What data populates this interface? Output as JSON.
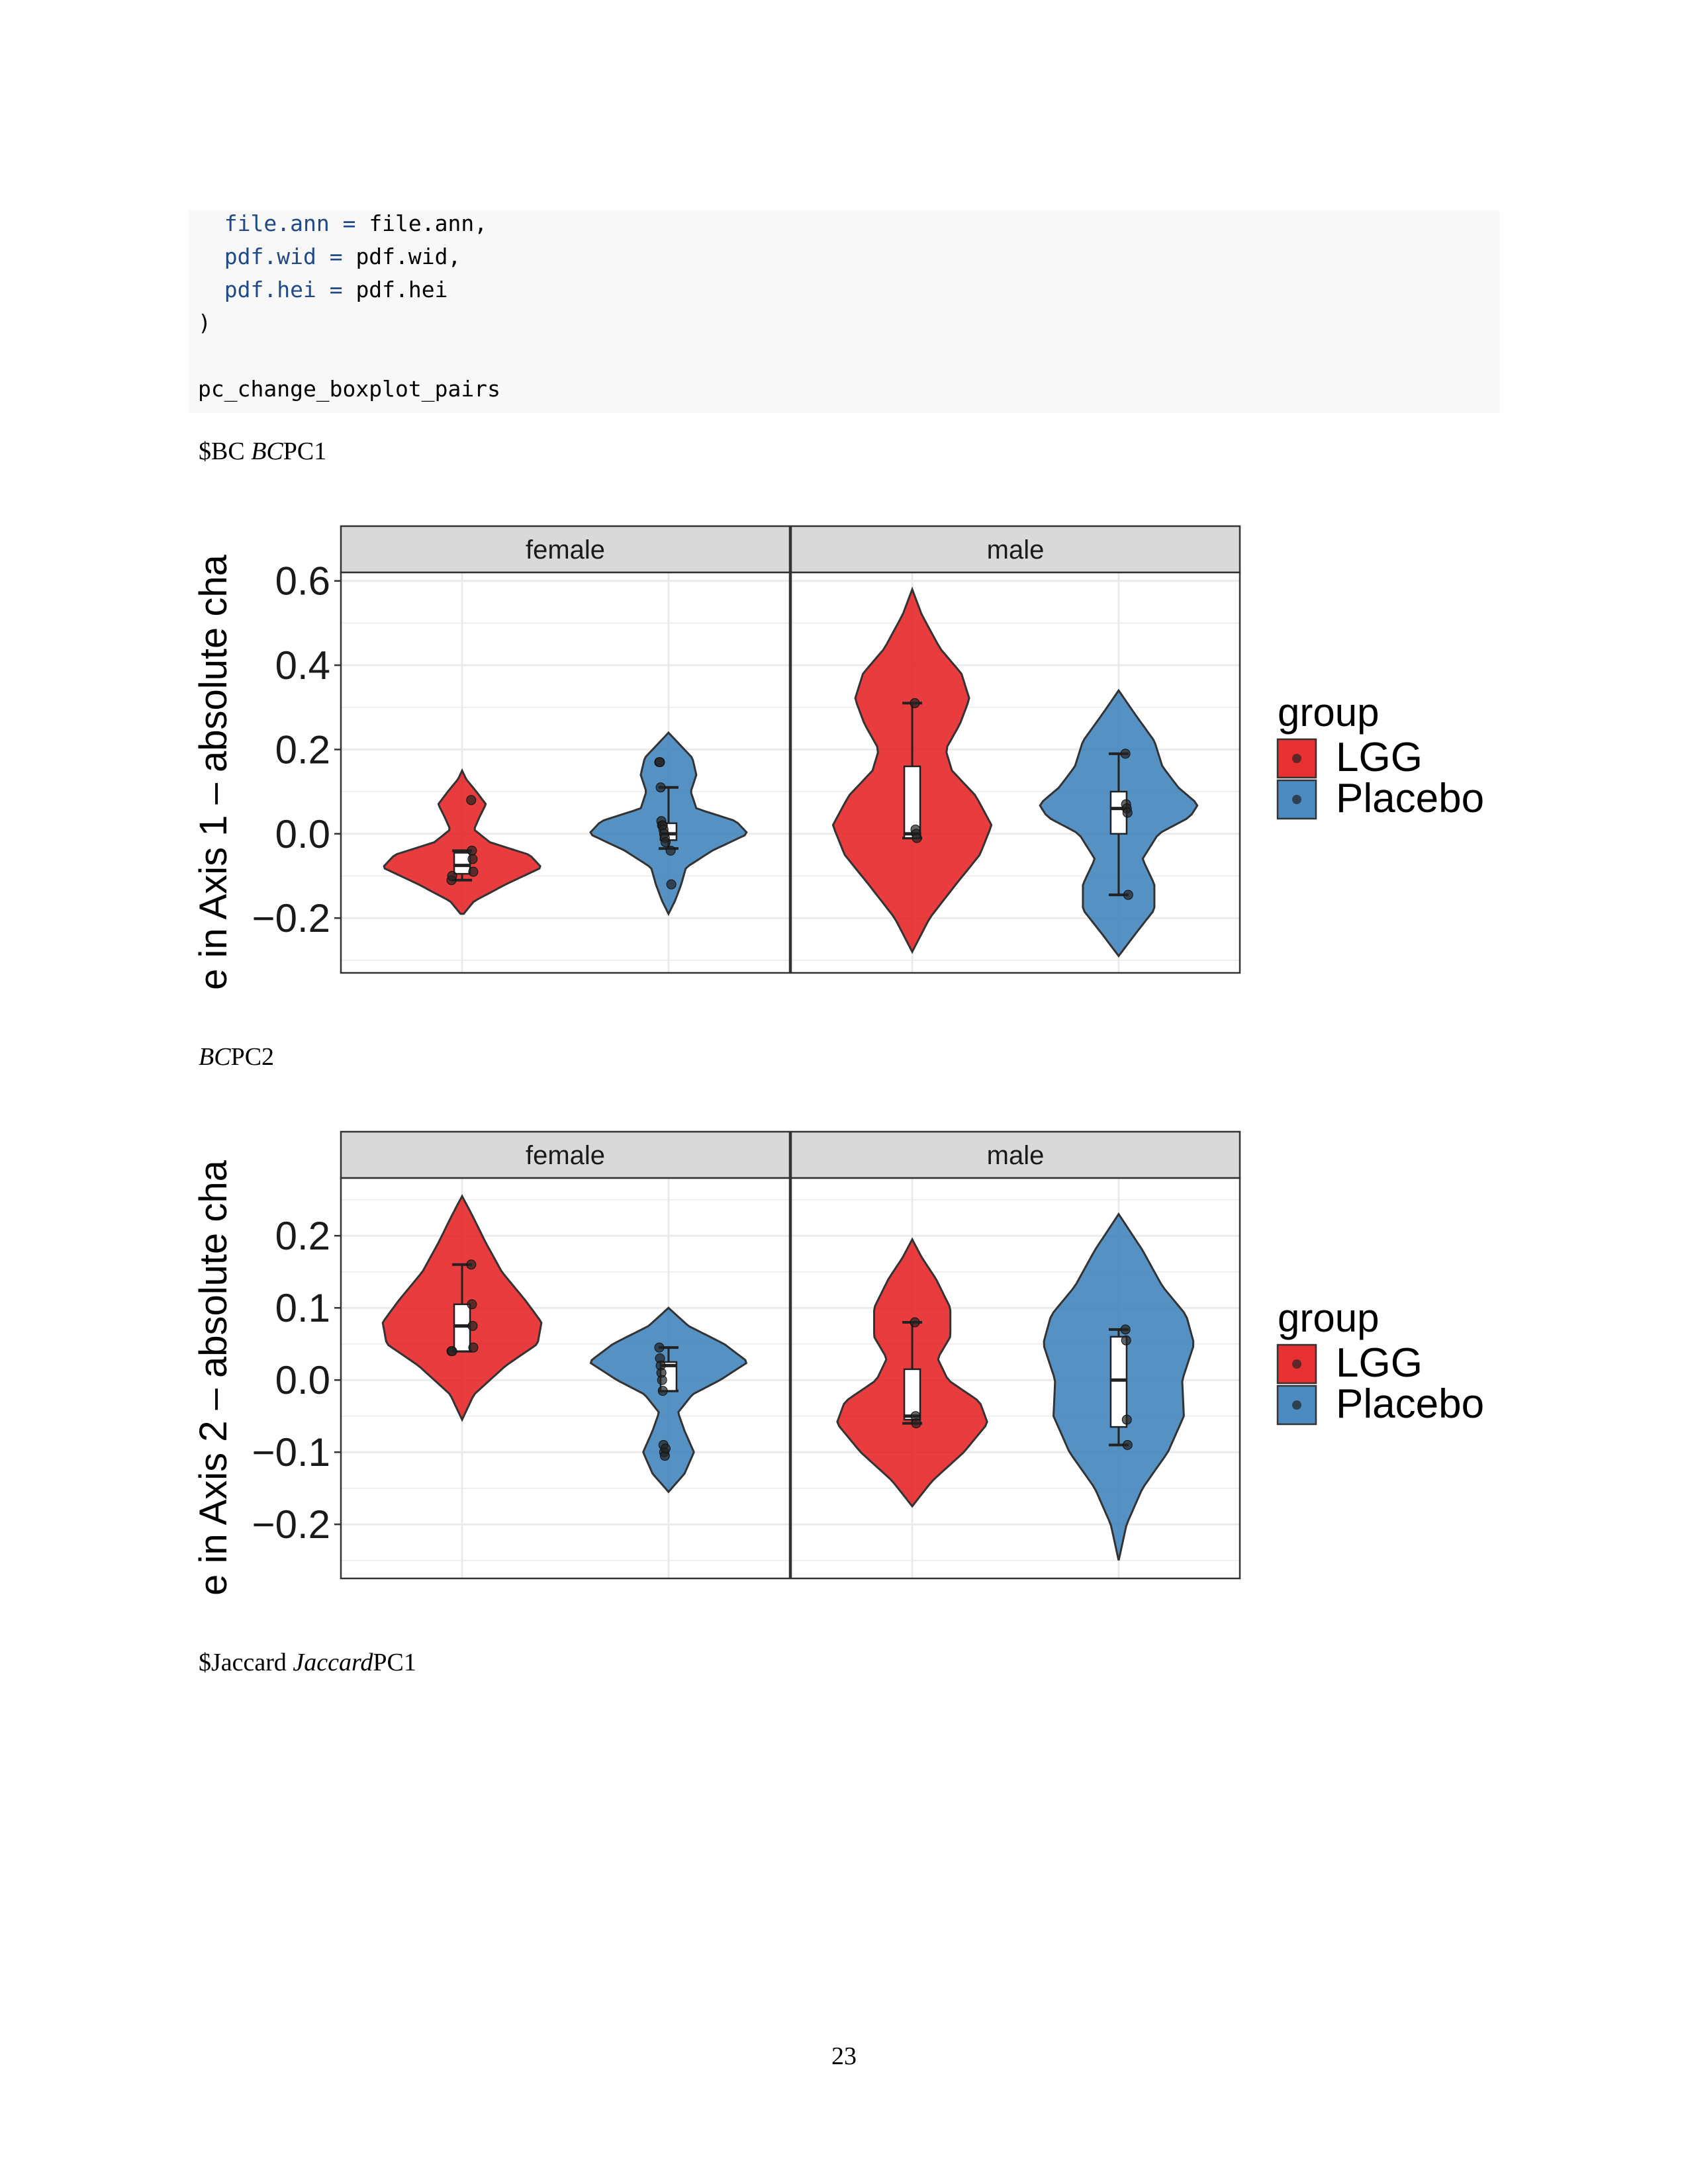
{
  "code": {
    "lines": [
      {
        "indent": "  ",
        "arg": "file.ann",
        "op": " = ",
        "val": "file.ann,"
      },
      {
        "indent": "  ",
        "arg": "pdf.wid",
        "op": " = ",
        "val": "pdf.wid,"
      },
      {
        "indent": "  ",
        "arg": "pdf.hei",
        "op": " = ",
        "val": "pdf.hei"
      },
      {
        "indent": "",
        "arg": "",
        "op": "",
        "val": ")"
      },
      {
        "indent": "",
        "arg": "",
        "op": "",
        "val": ""
      },
      {
        "indent": "",
        "arg": "",
        "op": "",
        "val": "pc_change_boxplot_pairs"
      }
    ]
  },
  "captions": {
    "bc_pc1": {
      "plain": "$BC ",
      "italic": "BC",
      "rest": "PC1"
    },
    "bc_pc2": {
      "plain": "",
      "italic": "BC",
      "rest": "PC2"
    },
    "jaccard_pc1": {
      "plain": "$Jaccard ",
      "italic": "Jaccard",
      "rest": "PC1"
    }
  },
  "page_number": "23",
  "colors": {
    "LGG": "#e41a1c",
    "Placebo": "#377eb8"
  },
  "chart_data": [
    {
      "type": "violin",
      "ylabel": "e in  Axis  1  –  absolute cha",
      "facets": [
        "female",
        "male"
      ],
      "groups": [
        "LGG",
        "Placebo"
      ],
      "legend": {
        "title": "group",
        "entries": [
          "LGG",
          "Placebo"
        ],
        "position": "right"
      },
      "ylim": [
        -0.33,
        0.62
      ],
      "yticks": [
        -0.2,
        0.0,
        0.2,
        0.4,
        0.6
      ],
      "yticklabels": [
        "−0.2",
        "0.0",
        "0.2",
        "0.4",
        "0.6"
      ],
      "grid": true,
      "series": [
        {
          "facet": "female",
          "group": "LGG",
          "points": [
            0.08,
            -0.04,
            -0.06,
            -0.09,
            -0.11,
            -0.1
          ],
          "box": {
            "whisker_low": -0.11,
            "q1": -0.095,
            "median": -0.075,
            "q3": -0.045,
            "whisker_high": -0.04
          },
          "violin_range": [
            -0.19,
            0.15
          ],
          "density": [
            [
              -0.19,
              0.02
            ],
            [
              -0.16,
              0.15
            ],
            [
              -0.12,
              0.55
            ],
            [
              -0.08,
              1.0
            ],
            [
              -0.05,
              0.85
            ],
            [
              -0.02,
              0.35
            ],
            [
              0.01,
              0.15
            ],
            [
              0.04,
              0.22
            ],
            [
              0.07,
              0.3
            ],
            [
              0.1,
              0.18
            ],
            [
              0.13,
              0.05
            ],
            [
              0.15,
              0.0
            ]
          ]
        },
        {
          "facet": "female",
          "group": "Placebo",
          "points": [
            0.17,
            0.17,
            0.11,
            0.03,
            0.02,
            0.02,
            0.01,
            0.0,
            -0.01,
            -0.02,
            -0.04,
            -0.12
          ],
          "box": {
            "whisker_low": -0.035,
            "q1": -0.015,
            "median": 0.0,
            "q3": 0.025,
            "whisker_high": 0.11
          },
          "violin_range": [
            -0.19,
            0.24
          ],
          "density": [
            [
              -0.19,
              0.0
            ],
            [
              -0.16,
              0.08
            ],
            [
              -0.12,
              0.16
            ],
            [
              -0.08,
              0.22
            ],
            [
              -0.04,
              0.55
            ],
            [
              0.0,
              1.0
            ],
            [
              0.03,
              0.85
            ],
            [
              0.06,
              0.35
            ],
            [
              0.1,
              0.28
            ],
            [
              0.14,
              0.35
            ],
            [
              0.18,
              0.3
            ],
            [
              0.22,
              0.1
            ],
            [
              0.24,
              0.0
            ]
          ]
        },
        {
          "facet": "male",
          "group": "LGG",
          "points": [
            0.31,
            0.01,
            0.0,
            -0.01
          ],
          "box": {
            "whisker_low": -0.01,
            "q1": -0.01,
            "median": 0.0,
            "q3": 0.16,
            "whisker_high": 0.31
          },
          "violin_range": [
            -0.28,
            0.58
          ],
          "density": [
            [
              -0.28,
              0.0
            ],
            [
              -0.2,
              0.22
            ],
            [
              -0.12,
              0.55
            ],
            [
              -0.05,
              0.85
            ],
            [
              0.02,
              1.0
            ],
            [
              0.09,
              0.8
            ],
            [
              0.15,
              0.5
            ],
            [
              0.2,
              0.42
            ],
            [
              0.26,
              0.6
            ],
            [
              0.32,
              0.72
            ],
            [
              0.38,
              0.62
            ],
            [
              0.44,
              0.35
            ],
            [
              0.52,
              0.12
            ],
            [
              0.58,
              0.0
            ]
          ]
        },
        {
          "facet": "male",
          "group": "Placebo",
          "points": [
            0.19,
            0.07,
            0.06,
            0.05,
            -0.145
          ],
          "box": {
            "whisker_low": -0.145,
            "q1": 0.0,
            "median": 0.06,
            "q3": 0.1,
            "whisker_high": 0.19
          },
          "violin_range": [
            -0.29,
            0.34
          ],
          "density": [
            [
              -0.29,
              0.0
            ],
            [
              -0.24,
              0.2
            ],
            [
              -0.18,
              0.45
            ],
            [
              -0.12,
              0.45
            ],
            [
              -0.06,
              0.3
            ],
            [
              0.0,
              0.5
            ],
            [
              0.04,
              0.9
            ],
            [
              0.07,
              1.0
            ],
            [
              0.11,
              0.75
            ],
            [
              0.16,
              0.55
            ],
            [
              0.22,
              0.45
            ],
            [
              0.28,
              0.22
            ],
            [
              0.34,
              0.0
            ]
          ]
        }
      ]
    },
    {
      "type": "violin",
      "ylabel": "e in  Axis  2  –  absolute cha",
      "facets": [
        "female",
        "male"
      ],
      "groups": [
        "LGG",
        "Placebo"
      ],
      "legend": {
        "title": "group",
        "entries": [
          "LGG",
          "Placebo"
        ],
        "position": "right"
      },
      "ylim": [
        -0.275,
        0.28
      ],
      "yticks": [
        -0.2,
        -0.1,
        0.0,
        0.1,
        0.2
      ],
      "yticklabels": [
        "−0.2",
        "−0.1",
        "0.0",
        "0.1",
        "0.2"
      ],
      "grid": true,
      "series": [
        {
          "facet": "female",
          "group": "LGG",
          "points": [
            0.16,
            0.105,
            0.075,
            0.045,
            0.04,
            0.04
          ],
          "box": {
            "whisker_low": 0.04,
            "q1": 0.04,
            "median": 0.075,
            "q3": 0.105,
            "whisker_high": 0.16
          },
          "violin_range": [
            -0.055,
            0.255
          ],
          "density": [
            [
              -0.055,
              0.0
            ],
            [
              -0.02,
              0.15
            ],
            [
              0.02,
              0.55
            ],
            [
              0.05,
              0.95
            ],
            [
              0.08,
              1.0
            ],
            [
              0.11,
              0.8
            ],
            [
              0.15,
              0.5
            ],
            [
              0.19,
              0.3
            ],
            [
              0.23,
              0.12
            ],
            [
              0.255,
              0.0
            ]
          ]
        },
        {
          "facet": "female",
          "group": "Placebo",
          "points": [
            0.045,
            0.03,
            0.02,
            0.01,
            0.0,
            -0.015,
            -0.09,
            -0.1,
            -0.105,
            -0.095
          ],
          "box": {
            "whisker_low": -0.015,
            "q1": -0.015,
            "median": 0.02,
            "q3": 0.025,
            "whisker_high": 0.045
          },
          "violin_range": [
            -0.155,
            0.1
          ],
          "density": [
            [
              -0.155,
              0.0
            ],
            [
              -0.13,
              0.2
            ],
            [
              -0.1,
              0.32
            ],
            [
              -0.07,
              0.2
            ],
            [
              -0.045,
              0.12
            ],
            [
              -0.02,
              0.3
            ],
            [
              0.0,
              0.65
            ],
            [
              0.025,
              1.0
            ],
            [
              0.05,
              0.7
            ],
            [
              0.075,
              0.25
            ],
            [
              0.1,
              0.0
            ]
          ]
        },
        {
          "facet": "male",
          "group": "LGG",
          "points": [
            0.08,
            -0.05,
            -0.06
          ],
          "box": {
            "whisker_low": -0.06,
            "q1": -0.055,
            "median": -0.05,
            "q3": 0.015,
            "whisker_high": 0.08
          },
          "violin_range": [
            -0.175,
            0.195
          ],
          "density": [
            [
              -0.175,
              0.0
            ],
            [
              -0.14,
              0.25
            ],
            [
              -0.1,
              0.65
            ],
            [
              -0.06,
              0.95
            ],
            [
              -0.03,
              0.85
            ],
            [
              0.0,
              0.45
            ],
            [
              0.03,
              0.32
            ],
            [
              0.06,
              0.48
            ],
            [
              0.1,
              0.48
            ],
            [
              0.14,
              0.3
            ],
            [
              0.17,
              0.12
            ],
            [
              0.195,
              0.0
            ]
          ]
        },
        {
          "facet": "male",
          "group": "Placebo",
          "points": [
            0.07,
            0.055,
            -0.055,
            -0.09
          ],
          "box": {
            "whisker_low": -0.09,
            "q1": -0.065,
            "median": 0.0,
            "q3": 0.06,
            "whisker_high": 0.07
          },
          "violin_range": [
            -0.25,
            0.23
          ],
          "density": [
            [
              -0.25,
              0.0
            ],
            [
              -0.2,
              0.1
            ],
            [
              -0.15,
              0.3
            ],
            [
              -0.1,
              0.62
            ],
            [
              -0.05,
              0.82
            ],
            [
              0.0,
              0.8
            ],
            [
              0.05,
              0.95
            ],
            [
              0.09,
              0.85
            ],
            [
              0.13,
              0.55
            ],
            [
              0.18,
              0.3
            ],
            [
              0.23,
              0.0
            ]
          ]
        }
      ]
    }
  ]
}
